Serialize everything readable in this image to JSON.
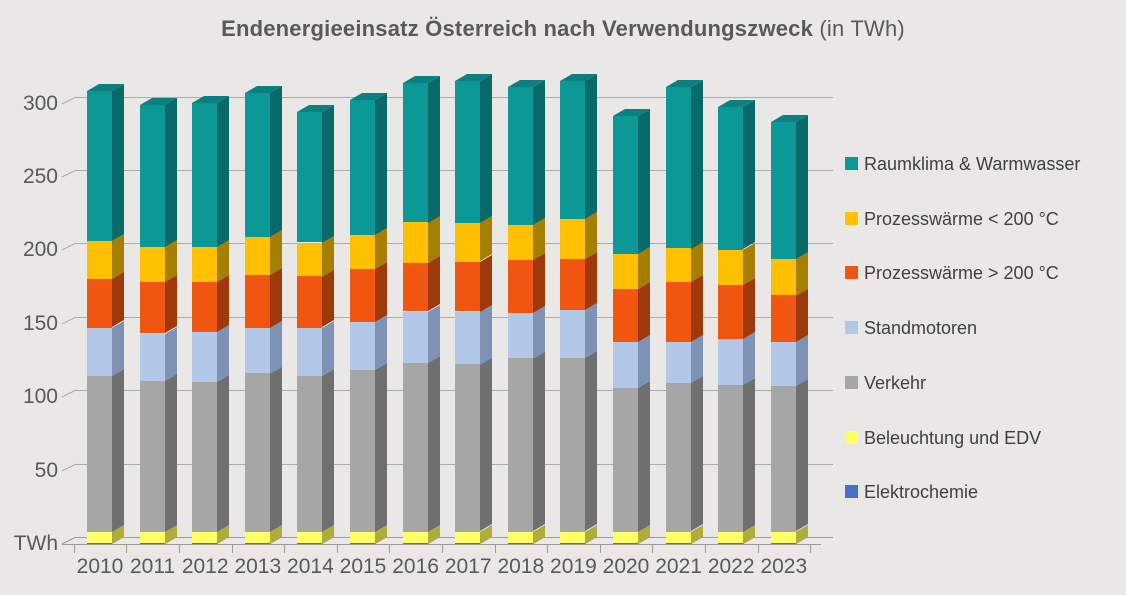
{
  "title": {
    "main": "Endenergieeinsatz Österreich nach Verwendungszweck",
    "suffix": " (in TWh)"
  },
  "colors": {
    "background": "#E9E8E6",
    "gridline": "#ACACAC",
    "axis_line": "#9B9B9B",
    "title_text": "#595959",
    "axis_text": "#595959",
    "legend_text": "#3F3F3F"
  },
  "chart_data": {
    "type": "bar",
    "stacked": true,
    "effect_3d": true,
    "title": "Endenergieeinsatz Österreich nach Verwendungszweck (in TWh)",
    "unit": "TWh",
    "xlabel": "",
    "ylabel": "TWh",
    "grid": true,
    "legend_position": "right",
    "y_axis": {
      "unit_label": "TWh",
      "ticks": [
        50,
        100,
        150,
        200,
        250,
        300
      ],
      "ylim": [
        0,
        320
      ]
    },
    "categories": [
      "2010",
      "2011",
      "2012",
      "2013",
      "2014",
      "2015",
      "2016",
      "2017",
      "2018",
      "2019",
      "2020",
      "2021",
      "2022",
      "2023"
    ],
    "series_bottom_to_top": [
      {
        "name": "Elektrochemie",
        "color": "#4472C4",
        "color_side": "#2F54A0",
        "color_top": "#3A63B0",
        "values": [
          0.4,
          0.4,
          0.4,
          0.4,
          0.4,
          0.4,
          0.4,
          0.4,
          0.4,
          0.4,
          0.4,
          0.4,
          0.4,
          0.4
        ]
      },
      {
        "name": "Beleuchtung und EDV",
        "color": "#FFFF66",
        "color_side": "#ADAD3C",
        "color_top": "#D6D64F",
        "values": [
          8,
          8,
          8,
          8,
          8,
          8,
          8,
          8,
          8,
          8,
          8,
          8,
          8,
          8
        ]
      },
      {
        "name": "Verkehr",
        "color": "#A6A6A6",
        "color_side": "#6F6F6F",
        "color_top": "#8C8C8C",
        "values": [
          106,
          103,
          102,
          108,
          106,
          110,
          115,
          114,
          118,
          118,
          98,
          101,
          100,
          99
        ]
      },
      {
        "name": "Standmotoren",
        "color": "#B3C7E8",
        "color_side": "#7E92B5",
        "color_top": "#98ABC9",
        "values": [
          33,
          32,
          34,
          31,
          33,
          33,
          35,
          36,
          31,
          33,
          31,
          28,
          31,
          30
        ]
      },
      {
        "name": "Prozesswärme > 200 °C",
        "color": "#F0560F",
        "color_side": "#9E3A0A",
        "color_top": "#C4480D",
        "values": [
          33,
          35,
          34,
          36,
          35,
          36,
          33,
          34,
          36,
          35,
          36,
          41,
          37,
          32
        ]
      },
      {
        "name": "Prozesswärme < 200 °C",
        "color": "#FFC000",
        "color_side": "#A67E00",
        "color_top": "#D9A400",
        "values": [
          26,
          24,
          24,
          26,
          23,
          23,
          28,
          26,
          24,
          27,
          24,
          23,
          24,
          25
        ]
      },
      {
        "name": "Raumklima & Warmwasser",
        "color": "#0D9898",
        "color_side": "#0A6A6A",
        "color_top": "#0C8080",
        "values": [
          102,
          97,
          98,
          98,
          89,
          92,
          95,
          97,
          94,
          94,
          94,
          110,
          97,
          93
        ]
      }
    ],
    "totals": [
      308,
      299,
      300,
      307,
      294,
      302,
      314,
      315,
      311,
      315,
      291,
      311,
      297,
      287
    ],
    "legend_order_top_to_bottom": [
      "Raumklima & Warmwasser",
      "Prozesswärme < 200 °C",
      "Prozesswärme > 200 °C",
      "Standmotoren",
      "Verkehr",
      "Beleuchtung und EDV",
      "Elektrochemie"
    ]
  }
}
